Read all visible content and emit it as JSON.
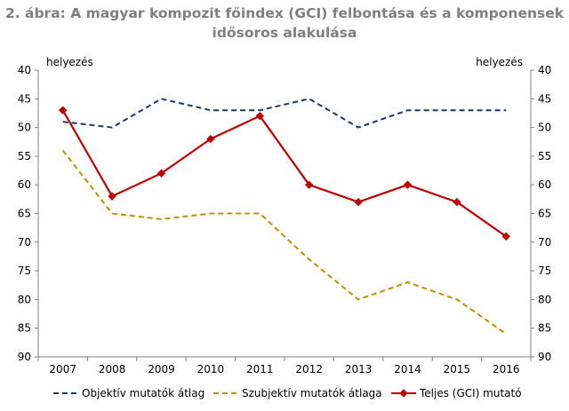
{
  "chart_data": {
    "type": "line",
    "title": "2. ábra: A magyar kompozit főindex (GCI) felbontása és a komponensek idősoros alakulása",
    "ylabel_left": "helyezés",
    "ylabel_right": "helyezés",
    "ylim": [
      90,
      40
    ],
    "y_inverted": true,
    "yticks": [
      40,
      45,
      50,
      55,
      60,
      65,
      70,
      75,
      80,
      85,
      90
    ],
    "categories": [
      "2007",
      "2008",
      "2009",
      "2010",
      "2011",
      "2012",
      "2013",
      "2014",
      "2015",
      "2016"
    ],
    "legend_position": "bottom",
    "series": [
      {
        "name": "Objektív mutatók átlag",
        "color": "#1f3864",
        "style": "dashed",
        "values": [
          49,
          50,
          45,
          47,
          47,
          45,
          50,
          47,
          47,
          47
        ]
      },
      {
        "name": "Szubjektív mutatók átlaga",
        "color": "#bf9000",
        "style": "dashed",
        "values": [
          54,
          65,
          66,
          65,
          65,
          73,
          80,
          77,
          80,
          86
        ]
      },
      {
        "name": "Teljes (GCI) mutató",
        "color": "#c00000",
        "style": "solid-diamond",
        "values": [
          47,
          62,
          58,
          52,
          48,
          60,
          63,
          60,
          63,
          69
        ]
      }
    ]
  }
}
